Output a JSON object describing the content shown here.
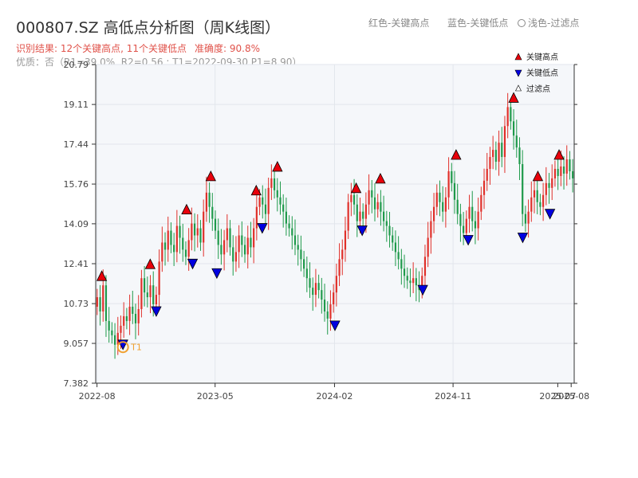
{
  "header": {
    "title": "000807.SZ 高低点分析图（周K线图）",
    "legend_red": "红色-关键高点",
    "legend_blue": "蓝色-关键低点",
    "legend_light": "浅色-过滤点",
    "result": "识别结果: 12个关键高点, 11个关键低点",
    "accuracy": "准确度: 90.8%",
    "quality": "优质：否（R1=39.0%, R2=0.56 ; T1=2022-09-30 P1=8.90）"
  },
  "chart_data": {
    "type": "candlestick",
    "title": "000807.SZ 高低点分析图（周K线图）",
    "ylim": [
      7.382,
      20.79
    ],
    "y_ticks": [
      "7.382",
      "9.057",
      "10.73",
      "12.41",
      "14.09",
      "15.76",
      "17.44",
      "19.11",
      "20.79"
    ],
    "x_ticks": [
      "2022-08",
      "2023-05",
      "2024-02",
      "2024-11",
      "2025-07",
      "2025-08"
    ],
    "grid": true,
    "legend": {
      "position": "top-right",
      "entries": [
        "关键高点",
        "关键低点",
        "过滤点"
      ]
    },
    "up_color": "#e0302a",
    "down_color": "#1f9a4b",
    "key_high_color": "#e8000b",
    "key_low_color": "#0000e0",
    "t1_marker": {
      "label": "T1",
      "date": "2022-09-30",
      "price": 8.9,
      "color": "#f0a030"
    },
    "key_highs": [
      {
        "date": "2022-08-12",
        "price": 11.7
      },
      {
        "date": "2022-12-02",
        "price": 12.2
      },
      {
        "date": "2023-02-24",
        "price": 14.5
      },
      {
        "date": "2023-04-21",
        "price": 15.9
      },
      {
        "date": "2023-08-04",
        "price": 15.3
      },
      {
        "date": "2023-09-22",
        "price": 16.3
      },
      {
        "date": "2024-03-22",
        "price": 15.4
      },
      {
        "date": "2024-05-17",
        "price": 15.8
      },
      {
        "date": "2024-11-08",
        "price": 16.8
      },
      {
        "date": "2025-03-21",
        "price": 19.2
      },
      {
        "date": "2025-05-16",
        "price": 15.9
      },
      {
        "date": "2025-07-04",
        "price": 16.8
      }
    ],
    "key_lows": [
      {
        "date": "2022-09-30",
        "price": 9.2
      },
      {
        "date": "2022-12-16",
        "price": 10.6
      },
      {
        "date": "2023-03-10",
        "price": 12.6
      },
      {
        "date": "2023-05-05",
        "price": 12.2
      },
      {
        "date": "2023-08-18",
        "price": 14.1
      },
      {
        "date": "2024-02-02",
        "price": 10.0
      },
      {
        "date": "2024-04-05",
        "price": 14.0
      },
      {
        "date": "2024-08-23",
        "price": 11.5
      },
      {
        "date": "2024-12-06",
        "price": 13.6
      },
      {
        "date": "2025-04-11",
        "price": 13.7
      },
      {
        "date": "2025-06-13",
        "price": 14.7
      }
    ],
    "weekly_closes": [
      11.0,
      10.4,
      11.5,
      10.0,
      9.6,
      9.4,
      9.0,
      9.5,
      9.8,
      10.2,
      10.0,
      10.6,
      10.3,
      9.9,
      10.5,
      11.8,
      11.2,
      11.0,
      11.5,
      10.7,
      11.1,
      12.5,
      13.3,
      13.0,
      13.8,
      13.2,
      12.9,
      14.0,
      13.5,
      13.0,
      12.7,
      13.4,
      14.1,
      13.6,
      13.9,
      13.3,
      14.6,
      15.4,
      14.8,
      14.3,
      13.8,
      13.2,
      12.8,
      13.4,
      13.9,
      13.1,
      12.5,
      12.9,
      13.6,
      13.2,
      12.8,
      13.5,
      13.1,
      13.9,
      14.8,
      15.2,
      14.9,
      14.5,
      15.6,
      16.0,
      15.5,
      15.2,
      14.9,
      14.6,
      14.1,
      13.9,
      13.6,
      13.2,
      13.0,
      12.6,
      12.2,
      11.8,
      11.4,
      11.1,
      11.6,
      11.3,
      10.9,
      10.4,
      10.1,
      10.7,
      11.2,
      11.9,
      12.6,
      13.0,
      13.8,
      15.0,
      15.3,
      14.9,
      14.2,
      14.6,
      14.3,
      14.9,
      15.5,
      15.2,
      14.7,
      15.0,
      14.6,
      14.2,
      14.0,
      13.6,
      13.3,
      12.9,
      12.6,
      12.2,
      11.9,
      11.7,
      11.6,
      11.8,
      11.5,
      11.3,
      11.9,
      12.7,
      13.5,
      14.2,
      14.8,
      15.4,
      15.0,
      14.6,
      15.2,
      16.3,
      15.8,
      15.1,
      14.5,
      14.0,
      13.7,
      14.3,
      14.8,
      14.2,
      13.9,
      14.6,
      15.3,
      15.9,
      16.4,
      16.9,
      17.2,
      16.7,
      17.5,
      16.9,
      18.2,
      19.0,
      18.4,
      17.8,
      17.3,
      16.6,
      14.5,
      14.1,
      14.6,
      15.2,
      15.5,
      15.0,
      14.8,
      15.3,
      15.8,
      15.6,
      16.0,
      16.4,
      16.1,
      16.5,
      16.2,
      16.8,
      16.3,
      16.0
    ]
  }
}
